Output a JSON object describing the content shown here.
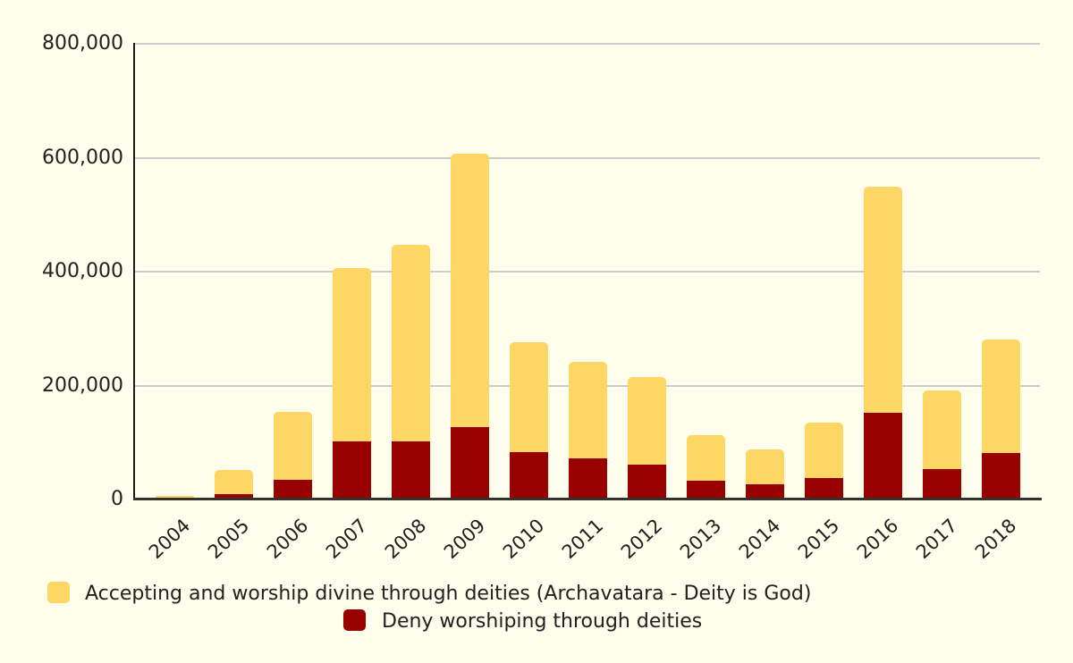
{
  "chart_data": {
    "type": "bar",
    "stacked": true,
    "title": "",
    "xlabel": "",
    "ylabel": "",
    "categories": [
      "2004",
      "2005",
      "2006",
      "2007",
      "2008",
      "2009",
      "2010",
      "2011",
      "2012",
      "2013",
      "2014",
      "2015",
      "2016",
      "2017",
      "2018"
    ],
    "series": [
      {
        "id": "accepting",
        "name": "Accepting and worship divine through deities (Archavatara - Deity is God)",
        "color": "#FDD663",
        "values": [
          4000,
          42000,
          119000,
          305000,
          346000,
          480000,
          193000,
          170000,
          153000,
          81000,
          62000,
          97000,
          398000,
          138000,
          200000
        ]
      },
      {
        "id": "deny",
        "name": "Deny worshiping through deities",
        "color": "#990000",
        "values": [
          1000,
          8000,
          33000,
          100000,
          100000,
          125000,
          82000,
          70000,
          60000,
          31000,
          25000,
          36000,
          150000,
          52000,
          80000
        ]
      }
    ],
    "stacked_totals": [
      5000,
      50000,
      152000,
      405000,
      446000,
      605000,
      275000,
      240000,
      213000,
      112000,
      87000,
      133000,
      548000,
      190000,
      280000
    ],
    "stack_order_bottom_to_top": [
      "deny",
      "accepting"
    ],
    "ylim": [
      0,
      800000
    ],
    "yticks": [
      {
        "value": 800000,
        "label": "800,000"
      },
      {
        "value": 600000,
        "label": "600,000"
      },
      {
        "value": 400000,
        "label": "400,000"
      },
      {
        "value": 200000,
        "label": "200,000"
      },
      {
        "value": 0,
        "label": "0"
      }
    ],
    "grid": true,
    "legend_position": "bottom"
  },
  "colors": {
    "background": "#FFFDEB",
    "gridline": "#CCCCCC",
    "x_axis_line": "#33332B",
    "y_axis_line": "#1D1D1D",
    "text": "#212121"
  }
}
